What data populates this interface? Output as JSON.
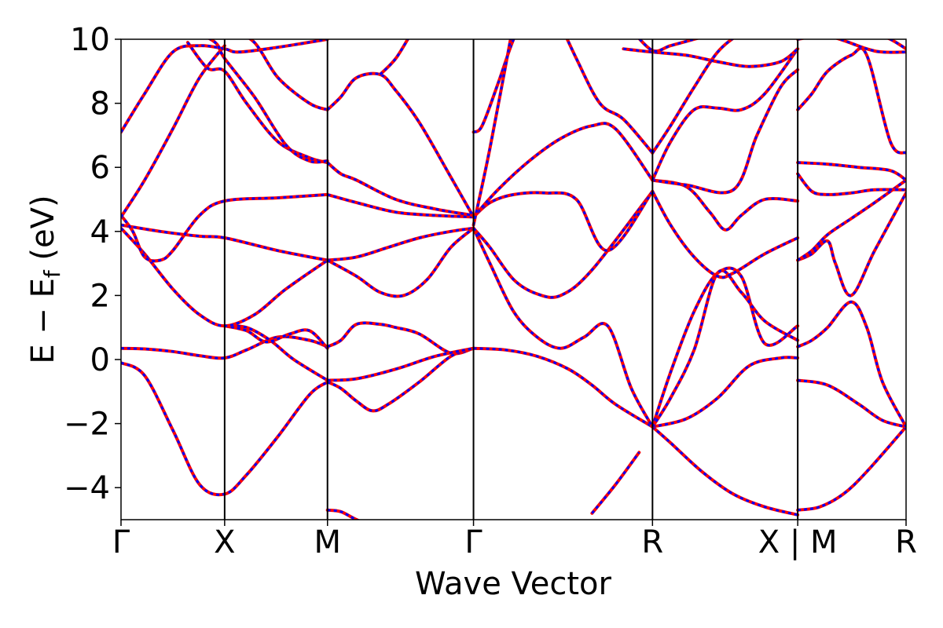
{
  "chart_data": {
    "type": "line",
    "xlabel": "Wave Vector",
    "ylabel": "E − Ef (eV)",
    "ylabel_main": "E − E",
    "ylabel_sub": "f",
    "ylabel_unit": " (eV)",
    "ylim": [
      -5,
      10
    ],
    "yticks": [
      -4,
      -2,
      0,
      2,
      4,
      6,
      8,
      10
    ],
    "ytick_labels": [
      "−4",
      "−2",
      "0",
      "2",
      "4",
      "6",
      "8",
      "10"
    ],
    "xlim": [
      0,
      1
    ],
    "kpoints": [
      {
        "label": "Γ",
        "x": 0.0
      },
      {
        "label": "X",
        "x": 0.132
      },
      {
        "label": "M",
        "x": 0.263
      },
      {
        "label": "Γ",
        "x": 0.449
      },
      {
        "label": "R",
        "x": 0.677
      },
      {
        "label": "X | M",
        "x": 0.862
      },
      {
        "label": "R",
        "x": 1.0
      }
    ],
    "colors": {
      "reference": "#ff0000",
      "overlay": "#0000ff"
    },
    "series": [
      {
        "x": [
          0,
          0.03,
          0.066,
          0.1,
          0.132,
          0.16,
          0.2,
          0.24,
          0.263
        ],
        "y": [
          -0.1,
          -0.5,
          -2.2,
          -3.9,
          -4.2,
          -3.6,
          -2.4,
          -1.1,
          -0.7
        ]
      },
      {
        "x": [
          0,
          0.03,
          0.066,
          0.1,
          0.132,
          0.16,
          0.2,
          0.24,
          0.263
        ],
        "y": [
          0.35,
          0.33,
          0.25,
          0.12,
          0.05,
          0.3,
          0.7,
          0.6,
          0.4
        ]
      },
      {
        "x": [
          0.132,
          0.16,
          0.19,
          0.22,
          0.263
        ],
        "y": [
          1.05,
          1.0,
          0.6,
          0.0,
          -0.65
        ]
      },
      {
        "x": [
          0.132,
          0.16,
          0.185,
          0.215,
          0.24,
          0.263
        ],
        "y": [
          1.05,
          0.9,
          0.55,
          0.8,
          0.9,
          0.35
        ]
      },
      {
        "x": [
          0,
          0.03,
          0.066,
          0.1,
          0.132,
          0.17,
          0.21,
          0.263
        ],
        "y": [
          4.1,
          3.3,
          2.2,
          1.4,
          1.05,
          1.4,
          2.2,
          3.1
        ]
      },
      {
        "x": [
          0,
          0.05,
          0.1,
          0.132,
          0.2,
          0.263
        ],
        "y": [
          4.2,
          4.0,
          3.85,
          3.8,
          3.4,
          3.1
        ]
      },
      {
        "x": [
          0,
          0.015,
          0.03,
          0.05,
          0.066,
          0.1,
          0.132,
          0.2,
          0.263
        ],
        "y": [
          4.5,
          4.0,
          3.2,
          3.1,
          3.4,
          4.5,
          4.95,
          5.05,
          5.15
        ]
      },
      {
        "x": [
          0,
          0.03,
          0.066,
          0.1,
          0.132
        ],
        "y": [
          4.45,
          5.6,
          7.2,
          8.8,
          9.8
        ]
      },
      {
        "x": [
          0,
          0.03,
          0.066,
          0.1,
          0.132,
          0.15,
          0.2,
          0.263
        ],
        "y": [
          7.1,
          8.3,
          9.6,
          9.8,
          9.7,
          9.6,
          9.75,
          10.0
        ]
      },
      {
        "x": [
          0.085,
          0.11,
          0.132,
          0.16,
          0.2,
          0.24,
          0.263
        ],
        "y": [
          9.9,
          9.1,
          9.0,
          8.0,
          6.8,
          6.3,
          6.15
        ]
      },
      {
        "x": [
          0.09,
          0.12,
          0.132,
          0.17,
          0.21,
          0.24,
          0.263
        ],
        "y": [
          10.3,
          9.9,
          9.4,
          8.2,
          6.7,
          6.2,
          6.2
        ]
      },
      {
        "x": [
          0.14,
          0.17,
          0.2,
          0.24,
          0.263
        ],
        "y": [
          10.3,
          9.9,
          8.8,
          8.0,
          7.8
        ]
      },
      {
        "x": [
          0.263,
          0.3,
          0.34,
          0.38,
          0.42,
          0.449
        ],
        "y": [
          3.1,
          3.2,
          3.5,
          3.8,
          4.0,
          4.1
        ]
      },
      {
        "x": [
          0.263,
          0.3,
          0.33,
          0.36,
          0.39,
          0.42,
          0.449
        ],
        "y": [
          3.1,
          2.6,
          2.1,
          2.0,
          2.5,
          3.5,
          4.1
        ]
      },
      {
        "x": [
          0.263,
          0.28,
          0.3,
          0.33,
          0.35,
          0.38,
          0.42,
          0.449
        ],
        "y": [
          0.4,
          0.6,
          1.1,
          1.1,
          1.0,
          0.8,
          0.2,
          0.35
        ]
      },
      {
        "x": [
          0.263,
          0.28,
          0.3,
          0.32,
          0.34,
          0.38,
          0.42,
          0.449
        ],
        "y": [
          -0.7,
          -0.9,
          -1.3,
          -1.6,
          -1.4,
          -0.7,
          0.1,
          0.35
        ]
      },
      {
        "x": [
          0.263,
          0.3,
          0.35,
          0.4,
          0.449
        ],
        "y": [
          -0.65,
          -0.6,
          -0.3,
          0.1,
          0.35
        ]
      },
      {
        "x": [
          0.263,
          0.3,
          0.35,
          0.4,
          0.449
        ],
        "y": [
          5.15,
          4.9,
          4.6,
          4.5,
          4.45
        ]
      },
      {
        "x": [
          0.263,
          0.28,
          0.3,
          0.35,
          0.4,
          0.449
        ],
        "y": [
          6.15,
          5.8,
          5.6,
          5.0,
          4.7,
          4.5
        ]
      },
      {
        "x": [
          0.263,
          0.28,
          0.3,
          0.33,
          0.35,
          0.38,
          0.42,
          0.449
        ],
        "y": [
          7.8,
          8.2,
          8.8,
          8.9,
          8.4,
          7.4,
          5.7,
          4.45
        ]
      },
      {
        "x": [
          0.33,
          0.35,
          0.37
        ],
        "y": [
          8.9,
          9.4,
          10.2
        ]
      },
      {
        "x": [
          0.263,
          0.28,
          0.3,
          0.33
        ],
        "y": [
          -4.7,
          -4.75,
          -5.0,
          -5.3
        ]
      },
      {
        "x": [
          0.449,
          0.49,
          0.53,
          0.57,
          0.6,
          0.63,
          0.677
        ],
        "y": [
          0.35,
          0.3,
          0.1,
          -0.3,
          -0.8,
          -1.4,
          -2.1
        ]
      },
      {
        "x": [
          0.449,
          0.47,
          0.5,
          0.53,
          0.56,
          0.59,
          0.62,
          0.65,
          0.677
        ],
        "y": [
          4.1,
          3.0,
          1.5,
          0.7,
          0.35,
          0.7,
          1.05,
          -0.9,
          -2.1
        ]
      },
      {
        "x": [
          0.449,
          0.47,
          0.5,
          0.53,
          0.56,
          0.6,
          0.677
        ],
        "y": [
          4.1,
          3.5,
          2.5,
          2.05,
          2.0,
          2.8,
          5.25
        ]
      },
      {
        "x": [
          0.449,
          0.47,
          0.5,
          0.54,
          0.58,
          0.62,
          0.677
        ],
        "y": [
          4.45,
          4.9,
          5.15,
          5.2,
          5.0,
          3.4,
          5.25
        ]
      },
      {
        "x": [
          0.449,
          0.48,
          0.52,
          0.56,
          0.6,
          0.63,
          0.677
        ],
        "y": [
          4.45,
          5.3,
          6.2,
          6.9,
          7.3,
          7.2,
          5.6
        ]
      },
      {
        "x": [
          0.449,
          0.46,
          0.48,
          0.5,
          0.52
        ],
        "y": [
          7.1,
          7.3,
          8.6,
          10.0,
          11.0
        ]
      },
      {
        "x": [
          0.55,
          0.58,
          0.61,
          0.64,
          0.677
        ],
        "y": [
          11.0,
          9.4,
          8.0,
          7.5,
          6.45
        ]
      },
      {
        "x": [
          0.449,
          0.47,
          0.5
        ],
        "y": [
          4.2,
          6.6,
          10.5
        ]
      },
      {
        "x": [
          0.6,
          0.63,
          0.66
        ],
        "y": [
          -4.8,
          -3.9,
          -2.9
        ]
      },
      {
        "x": [
          0.677,
          0.7,
          0.74,
          0.78,
          0.82,
          0.862
        ],
        "y": [
          -2.1,
          -2.6,
          -3.5,
          -4.2,
          -4.6,
          -4.85
        ]
      },
      {
        "x": [
          0.677,
          0.72,
          0.76,
          0.8,
          0.84,
          0.862
        ],
        "y": [
          -2.1,
          -1.85,
          -1.2,
          -0.2,
          0.05,
          0.05
        ]
      },
      {
        "x": [
          0.677,
          0.7,
          0.73,
          0.76,
          0.79,
          0.82,
          0.862
        ],
        "y": [
          -2.1,
          -0.4,
          1.5,
          2.7,
          2.6,
          0.5,
          1.05
        ]
      },
      {
        "x": [
          0.677,
          0.7,
          0.73,
          0.76,
          0.79,
          0.82,
          0.862
        ],
        "y": [
          -2.1,
          -1.2,
          0.3,
          2.7,
          2.1,
          1.2,
          0.6
        ]
      },
      {
        "x": [
          0.677,
          0.7,
          0.73,
          0.76,
          0.78,
          0.82,
          0.862
        ],
        "y": [
          5.25,
          4.2,
          3.2,
          2.6,
          2.7,
          3.3,
          3.8
        ]
      },
      {
        "x": [
          0.677,
          0.72,
          0.75,
          0.77,
          0.79,
          0.82,
          0.862
        ],
        "y": [
          5.6,
          5.4,
          4.6,
          4.05,
          4.5,
          5.0,
          4.95
        ]
      },
      {
        "x": [
          0.677,
          0.72,
          0.78,
          0.81,
          0.84,
          0.862
        ],
        "y": [
          5.6,
          5.45,
          5.3,
          7.0,
          8.5,
          9.05
        ]
      },
      {
        "x": [
          0.677,
          0.7,
          0.73,
          0.76,
          0.79,
          0.82,
          0.862
        ],
        "y": [
          5.6,
          6.8,
          7.8,
          7.85,
          7.8,
          8.3,
          9.7
        ]
      },
      {
        "x": [
          0.677,
          0.7,
          0.73,
          0.76,
          0.79,
          0.82,
          0.862
        ],
        "y": [
          6.45,
          7.3,
          8.5,
          9.6,
          10.2,
          10.6,
          11.0
        ]
      },
      {
        "x": [
          0.64,
          0.677,
          0.72,
          0.76,
          0.8,
          0.84,
          0.862
        ],
        "y": [
          9.7,
          9.6,
          9.5,
          9.3,
          9.15,
          9.3,
          9.7
        ]
      },
      {
        "x": [
          0.65,
          0.677,
          0.7,
          0.73,
          0.76
        ],
        "y": [
          10.3,
          9.65,
          9.8,
          10.0,
          10.2
        ]
      },
      {
        "x": [
          0.862,
          0.89,
          0.92,
          0.95,
          1.0
        ],
        "y": [
          -4.7,
          -4.6,
          -4.2,
          -3.5,
          -2.1
        ]
      },
      {
        "x": [
          0.862,
          0.9,
          0.94,
          0.97,
          1.0
        ],
        "y": [
          -0.65,
          -0.8,
          -1.4,
          -1.9,
          -2.1
        ]
      },
      {
        "x": [
          0.862,
          0.88,
          0.9,
          0.93,
          0.95,
          0.97,
          1.0
        ],
        "y": [
          0.4,
          0.6,
          1.0,
          1.8,
          1.0,
          -0.7,
          -2.1
        ]
      },
      {
        "x": [
          0.862,
          0.88,
          0.9,
          0.91,
          0.93,
          0.96,
          1.0
        ],
        "y": [
          3.1,
          3.3,
          3.7,
          3.0,
          2.0,
          3.4,
          5.2
        ]
      },
      {
        "x": [
          0.862,
          0.88,
          0.9,
          0.93,
          0.96,
          1.0
        ],
        "y": [
          3.1,
          3.4,
          3.9,
          4.4,
          4.9,
          5.6
        ]
      },
      {
        "x": [
          0.862,
          0.88,
          0.9,
          0.93,
          0.96,
          1.0
        ],
        "y": [
          5.8,
          5.25,
          5.15,
          5.2,
          5.3,
          5.3
        ]
      },
      {
        "x": [
          0.862,
          0.9,
          0.94,
          0.98,
          1.0
        ],
        "y": [
          6.15,
          6.1,
          6.0,
          5.9,
          5.6
        ]
      },
      {
        "x": [
          0.862,
          0.88,
          0.9,
          0.93,
          0.95,
          0.98,
          1.0
        ],
        "y": [
          7.8,
          8.3,
          9.0,
          9.5,
          9.5,
          6.8,
          6.45
        ]
      },
      {
        "x": [
          0.862,
          0.9,
          0.95,
          0.97,
          1.0
        ],
        "y": [
          10.0,
          10.1,
          9.7,
          9.6,
          9.6
        ]
      },
      {
        "x": [
          0.95,
          0.98,
          1.0
        ],
        "y": [
          10.3,
          10.0,
          9.7
        ]
      }
    ]
  }
}
